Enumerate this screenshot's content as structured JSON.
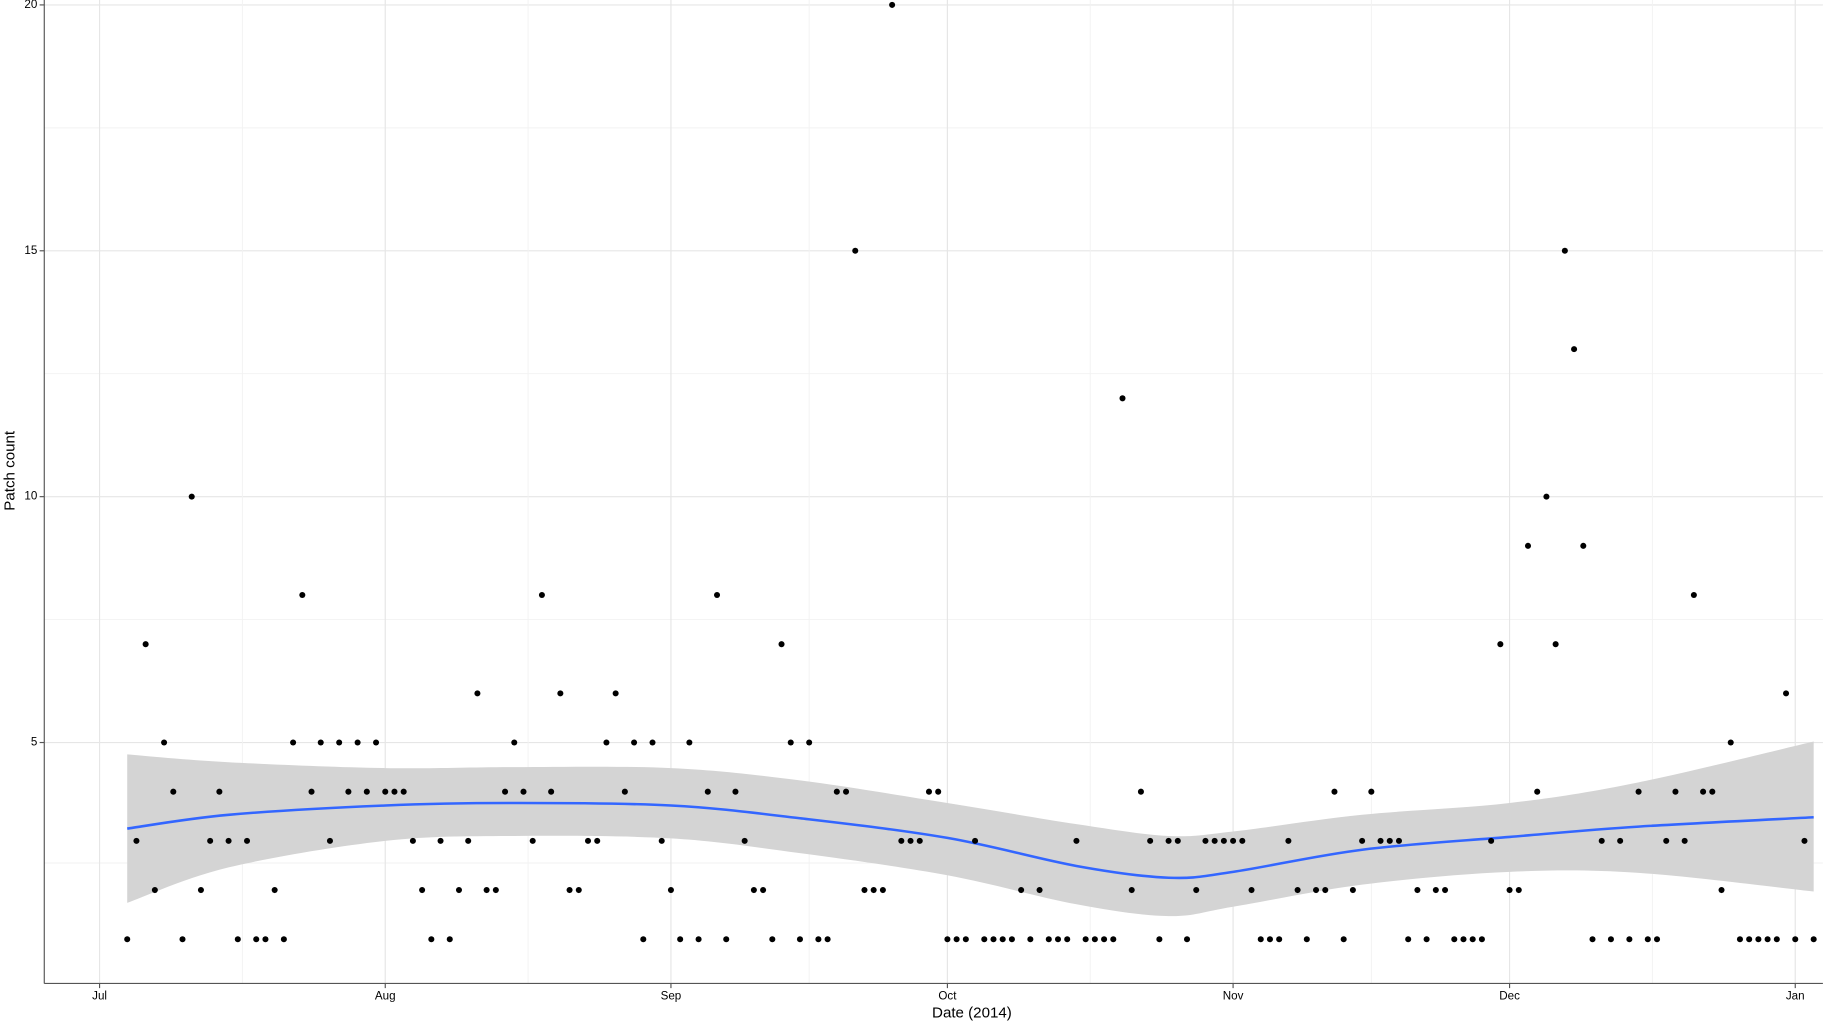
{
  "chart_data": {
    "type": "scatter",
    "x_label": "Date (2014)",
    "y_label": "Patch count",
    "x": [
      "2014-07-04",
      "2014-07-05",
      "2014-07-06",
      "2014-07-07",
      "2014-07-08",
      "2014-07-09",
      "2014-07-10",
      "2014-07-11",
      "2014-07-12",
      "2014-07-13",
      "2014-07-14",
      "2014-07-15",
      "2014-07-16",
      "2014-07-17",
      "2014-07-18",
      "2014-07-19",
      "2014-07-20",
      "2014-07-21",
      "2014-07-22",
      "2014-07-23",
      "2014-07-24",
      "2014-07-25",
      "2014-07-26",
      "2014-07-27",
      "2014-07-28",
      "2014-07-29",
      "2014-07-30",
      "2014-07-31",
      "2014-08-01",
      "2014-08-02",
      "2014-08-03",
      "2014-08-04",
      "2014-08-05",
      "2014-08-06",
      "2014-08-07",
      "2014-08-08",
      "2014-08-09",
      "2014-08-10",
      "2014-08-11",
      "2014-08-12",
      "2014-08-13",
      "2014-08-14",
      "2014-08-15",
      "2014-08-16",
      "2014-08-17",
      "2014-08-18",
      "2014-08-19",
      "2014-08-20",
      "2014-08-21",
      "2014-08-22",
      "2014-08-23",
      "2014-08-24",
      "2014-08-25",
      "2014-08-26",
      "2014-08-27",
      "2014-08-28",
      "2014-08-29",
      "2014-08-30",
      "2014-08-31",
      "2014-09-01",
      "2014-09-02",
      "2014-09-03",
      "2014-09-04",
      "2014-09-05",
      "2014-09-06",
      "2014-09-07",
      "2014-09-08",
      "2014-09-09",
      "2014-09-10",
      "2014-09-11",
      "2014-09-12",
      "2014-09-13",
      "2014-09-14",
      "2014-09-15",
      "2014-09-16",
      "2014-09-17",
      "2014-09-18",
      "2014-09-19",
      "2014-09-20",
      "2014-09-21",
      "2014-09-22",
      "2014-09-23",
      "2014-09-24",
      "2014-09-25",
      "2014-09-26",
      "2014-09-27",
      "2014-09-28",
      "2014-09-29",
      "2014-09-30",
      "2014-10-01",
      "2014-10-02",
      "2014-10-03",
      "2014-10-04",
      "2014-10-05",
      "2014-10-06",
      "2014-10-07",
      "2014-10-08",
      "2014-10-09",
      "2014-10-10",
      "2014-10-11",
      "2014-10-12",
      "2014-10-13",
      "2014-10-14",
      "2014-10-15",
      "2014-10-16",
      "2014-10-17",
      "2014-10-18",
      "2014-10-19",
      "2014-10-20",
      "2014-10-21",
      "2014-10-22",
      "2014-10-23",
      "2014-10-24",
      "2014-10-25",
      "2014-10-26",
      "2014-10-27",
      "2014-10-28",
      "2014-10-29",
      "2014-10-30",
      "2014-10-31",
      "2014-11-01",
      "2014-11-02",
      "2014-11-03",
      "2014-11-04",
      "2014-11-05",
      "2014-11-06",
      "2014-11-07",
      "2014-11-08",
      "2014-11-09",
      "2014-11-10",
      "2014-11-11",
      "2014-11-12",
      "2014-11-13",
      "2014-11-14",
      "2014-11-15",
      "2014-11-16",
      "2014-11-17",
      "2014-11-18",
      "2014-11-19",
      "2014-11-20",
      "2014-11-21",
      "2014-11-22",
      "2014-11-23",
      "2014-11-24",
      "2014-11-25",
      "2014-11-26",
      "2014-11-27",
      "2014-11-28",
      "2014-11-29",
      "2014-11-30",
      "2014-12-01",
      "2014-12-02",
      "2014-12-03",
      "2014-12-04",
      "2014-12-05",
      "2014-12-06",
      "2014-12-07",
      "2014-12-08",
      "2014-12-09",
      "2014-12-10",
      "2014-12-11",
      "2014-12-12",
      "2014-12-13",
      "2014-12-14",
      "2014-12-15",
      "2014-12-16",
      "2014-12-17",
      "2014-12-18",
      "2014-12-19",
      "2014-12-20",
      "2014-12-21",
      "2014-12-22",
      "2014-12-23",
      "2014-12-24",
      "2014-12-25",
      "2014-12-26",
      "2014-12-27",
      "2014-12-28",
      "2014-12-29",
      "2014-12-30",
      "2014-12-31",
      "2015-01-01",
      "2015-01-02",
      "2015-01-03"
    ],
    "values": [
      1,
      3,
      7,
      2,
      5,
      4,
      1,
      10,
      2,
      3,
      4,
      3,
      1,
      3,
      1,
      1,
      2,
      1,
      5,
      8,
      4,
      5,
      3,
      5,
      4,
      5,
      4,
      5,
      4,
      4,
      4,
      3,
      2,
      1,
      3,
      1,
      2,
      3,
      6,
      2,
      2,
      4,
      5,
      4,
      3,
      8,
      4,
      6,
      2,
      2,
      3,
      3,
      5,
      6,
      4,
      5,
      1,
      5,
      3,
      2,
      1,
      5,
      1,
      4,
      8,
      1,
      4,
      3,
      2,
      2,
      1,
      7,
      5,
      1,
      5,
      1,
      1,
      4,
      4,
      15,
      2,
      2,
      2,
      20,
      3,
      3,
      3,
      4,
      4,
      1,
      1,
      1,
      3,
      1,
      1,
      1,
      1,
      2,
      1,
      2,
      1,
      1,
      1,
      3,
      1,
      1,
      1,
      1,
      12,
      2,
      4,
      3,
      1,
      3,
      3,
      1,
      2,
      3,
      3,
      3,
      3,
      3,
      2,
      1,
      1,
      1,
      3,
      2,
      1,
      2,
      2,
      4,
      1,
      2,
      3,
      4,
      3,
      3,
      3,
      1,
      2,
      1,
      2,
      2,
      1,
      1,
      1,
      1,
      3,
      7,
      2,
      2,
      9,
      4,
      10,
      7,
      15,
      13,
      9,
      1,
      3,
      1,
      3,
      1,
      4,
      1,
      1,
      3,
      4,
      3,
      8,
      4,
      4,
      2,
      5,
      1,
      1,
      1,
      1,
      1,
      6,
      1,
      3,
      1
    ],
    "color": "#000000",
    "smooth": {
      "x": [
        "2014-07-04",
        "2014-07-15",
        "2014-08-01",
        "2014-08-15",
        "2014-09-01",
        "2014-09-15",
        "2014-10-01",
        "2014-10-15",
        "2014-10-25",
        "2014-11-01",
        "2014-11-15",
        "2014-12-01",
        "2014-12-15",
        "2015-01-03"
      ],
      "values": [
        3.25,
        3.53,
        3.72,
        3.77,
        3.72,
        3.46,
        3.06,
        2.49,
        2.25,
        2.37,
        2.82,
        3.08,
        3.29,
        3.48
      ],
      "upper": [
        4.76,
        4.6,
        4.48,
        4.5,
        4.48,
        4.23,
        3.77,
        3.34,
        3.1,
        3.19,
        3.53,
        3.77,
        4.19,
        5.02
      ],
      "lower": [
        1.74,
        2.46,
        3.0,
        3.1,
        3.05,
        2.75,
        2.3,
        1.71,
        1.47,
        1.66,
        2.11,
        2.37,
        2.35,
        1.97
      ],
      "color": "#3366ff",
      "band_color": "#d4d4d4"
    },
    "xlim": [
      "2014-06-25",
      "2015-01-04"
    ],
    "xticks": [
      {
        "value": "2014-07-01",
        "label": "Jul"
      },
      {
        "value": "2014-08-01",
        "label": "Aug"
      },
      {
        "value": "2014-09-01",
        "label": "Sep"
      },
      {
        "value": "2014-10-01",
        "label": "Oct"
      },
      {
        "value": "2014-11-01",
        "label": "Nov"
      },
      {
        "value": "2014-12-01",
        "label": "Dec"
      },
      {
        "value": "2015-01-01",
        "label": "Jan"
      }
    ],
    "ylim": [
      0.1,
      20.1
    ],
    "yticks": [
      5,
      10,
      15,
      20
    ],
    "grid": true
  }
}
